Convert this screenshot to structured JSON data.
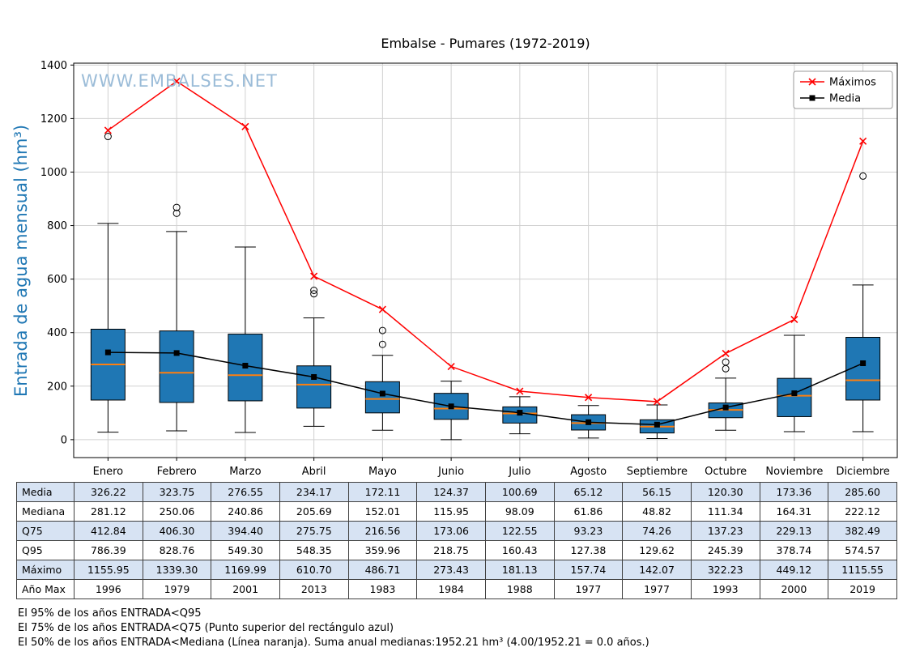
{
  "title": "Embalse - Pumares (1972-2019)",
  "watermark": "WWW.EMBALSES.NET",
  "chart_data": {
    "type": "boxplot",
    "title": "Embalse - Pumares (1972-2019)",
    "ylabel": "Entrada de agua mensual (hm³)",
    "categories": [
      "Enero",
      "Febrero",
      "Marzo",
      "Abril",
      "Mayo",
      "Junio",
      "Julio",
      "Agosto",
      "Septiembre",
      "Octubre",
      "Noviembre",
      "Diciembre"
    ],
    "ylim": [
      0,
      1400
    ],
    "yticks": [
      0,
      200,
      400,
      600,
      800,
      1000,
      1200,
      1400
    ],
    "grid": true,
    "legend_position": "upper right",
    "colors": {
      "box_fill": "#1f77b4",
      "box_edge": "#000000",
      "median": "#ff7f0e",
      "maximos": "#ff0000",
      "media": "#000000",
      "grid": "#d0d0d0",
      "ylabel": "#1f77b4",
      "watermark": "#9bbcd8",
      "table_shaded_row": "#d7e3f3"
    },
    "series": [
      {
        "name": "Máximos",
        "marker": "x",
        "color": "#ff0000",
        "values": [
          1155.95,
          1339.3,
          1169.99,
          610.7,
          486.71,
          273.43,
          181.13,
          157.74,
          142.07,
          322.23,
          449.12,
          1115.55
        ]
      },
      {
        "name": "Media",
        "marker": "square",
        "color": "#000000",
        "values": [
          326.22,
          323.75,
          276.55,
          234.17,
          172.11,
          124.37,
          100.69,
          65.12,
          56.15,
          120.3,
          173.36,
          285.6
        ]
      }
    ],
    "boxes": [
      {
        "month": "Enero",
        "q1": 148,
        "median": 281.12,
        "q3": 412.84,
        "whisker_low": 28,
        "whisker_high": 808,
        "outliers": [
          1133
        ]
      },
      {
        "month": "Febrero",
        "q1": 139,
        "median": 250.06,
        "q3": 406.3,
        "whisker_low": 33,
        "whisker_high": 778,
        "outliers": [
          846,
          868
        ]
      },
      {
        "month": "Marzo",
        "q1": 145,
        "median": 240.86,
        "q3": 394.4,
        "whisker_low": 27,
        "whisker_high": 720,
        "outliers": []
      },
      {
        "month": "Abril",
        "q1": 118,
        "median": 205.69,
        "q3": 275.75,
        "whisker_low": 50,
        "whisker_high": 455,
        "outliers": [
          545,
          558
        ]
      },
      {
        "month": "Mayo",
        "q1": 100,
        "median": 152.01,
        "q3": 216.56,
        "whisker_low": 35,
        "whisker_high": 315,
        "outliers": [
          356,
          408
        ]
      },
      {
        "month": "Junio",
        "q1": 76,
        "median": 115.95,
        "q3": 173.06,
        "whisker_low": 0,
        "whisker_high": 218.75,
        "outliers": []
      },
      {
        "month": "Julio",
        "q1": 62,
        "median": 98.09,
        "q3": 122.55,
        "whisker_low": 22,
        "whisker_high": 160.43,
        "outliers": []
      },
      {
        "month": "Agosto",
        "q1": 36,
        "median": 61.86,
        "q3": 93.23,
        "whisker_low": 6,
        "whisker_high": 127.38,
        "outliers": []
      },
      {
        "month": "Septiembre",
        "q1": 25,
        "median": 48.82,
        "q3": 74.26,
        "whisker_low": 4,
        "whisker_high": 129.62,
        "outliers": []
      },
      {
        "month": "Octubre",
        "q1": 82,
        "median": 111.34,
        "q3": 137.23,
        "whisker_low": 35,
        "whisker_high": 230,
        "outliers": [
          265,
          290
        ]
      },
      {
        "month": "Noviembre",
        "q1": 86,
        "median": 164.31,
        "q3": 229.13,
        "whisker_low": 30,
        "whisker_high": 390,
        "outliers": []
      },
      {
        "month": "Diciembre",
        "q1": 148,
        "median": 222.12,
        "q3": 382.49,
        "whisker_low": 30,
        "whisker_high": 578,
        "outliers": [
          985
        ]
      }
    ]
  },
  "table": {
    "columns": [
      "Enero",
      "Febrero",
      "Marzo",
      "Abril",
      "Mayo",
      "Junio",
      "Julio",
      "Agosto",
      "Septiembre",
      "Octubre",
      "Noviembre",
      "Diciembre"
    ],
    "rows": [
      {
        "label": "Media",
        "values": [
          "326.22",
          "323.75",
          "276.55",
          "234.17",
          "172.11",
          "124.37",
          "100.69",
          "65.12",
          "56.15",
          "120.30",
          "173.36",
          "285.60"
        ]
      },
      {
        "label": "Mediana",
        "values": [
          "281.12",
          "250.06",
          "240.86",
          "205.69",
          "152.01",
          "115.95",
          "98.09",
          "61.86",
          "48.82",
          "111.34",
          "164.31",
          "222.12"
        ]
      },
      {
        "label": "Q75",
        "values": [
          "412.84",
          "406.30",
          "394.40",
          "275.75",
          "216.56",
          "173.06",
          "122.55",
          "93.23",
          "74.26",
          "137.23",
          "229.13",
          "382.49"
        ]
      },
      {
        "label": "Q95",
        "values": [
          "786.39",
          "828.76",
          "549.30",
          "548.35",
          "359.96",
          "218.75",
          "160.43",
          "127.38",
          "129.62",
          "245.39",
          "378.74",
          "574.57"
        ]
      },
      {
        "label": "Máximo",
        "values": [
          "1155.95",
          "1339.30",
          "1169.99",
          "610.70",
          "486.71",
          "273.43",
          "181.13",
          "157.74",
          "142.07",
          "322.23",
          "449.12",
          "1115.55"
        ]
      },
      {
        "label": "Año Max",
        "values": [
          "1996",
          "1979",
          "2001",
          "2013",
          "1983",
          "1984",
          "1988",
          "1977",
          "1977",
          "1993",
          "2000",
          "2019"
        ]
      }
    ]
  },
  "footnotes": [
    "El 95% de los años ENTRADA<Q95",
    "El 75% de los años ENTRADA<Q75 (Punto superior del rectángulo azul)",
    "El 50% de los años ENTRADA<Mediana (Línea naranja). Suma anual medianas:1952.21 hm³ (4.00/1952.21 = 0.0 años.)"
  ]
}
